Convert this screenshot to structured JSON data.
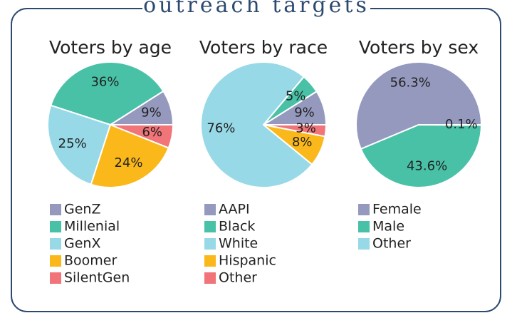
{
  "header": {
    "title": "outreach targets"
  },
  "chart_data": [
    {
      "type": "pie",
      "title": "Voters by age",
      "categories": [
        "GenZ",
        "Millenial",
        "GenX",
        "Boomer",
        "SilentGen"
      ],
      "values": [
        9,
        36,
        25,
        24,
        6
      ],
      "value_labels": [
        "9%",
        "36%",
        "25%",
        "24%",
        "6%"
      ],
      "colors": [
        "#9599be",
        "#48c1a6",
        "#97d9e6",
        "#fbb81a",
        "#f07478"
      ]
    },
    {
      "type": "pie",
      "title": "Voters by race",
      "categories": [
        "AAPI",
        "Black",
        "White",
        "Hispanic",
        "Other"
      ],
      "values": [
        9,
        5,
        76,
        8,
        3
      ],
      "value_labels": [
        "9%",
        "5%",
        "76%",
        "8%",
        "3%"
      ],
      "colors": [
        "#9599be",
        "#48c1a6",
        "#97d9e6",
        "#fbb81a",
        "#f07478"
      ]
    },
    {
      "type": "pie",
      "title": "Voters by sex",
      "categories": [
        "Female",
        "Male",
        "Other"
      ],
      "values": [
        56.3,
        43.6,
        0.1
      ],
      "value_labels": [
        "56.3%",
        "43.6%",
        "0.1%"
      ],
      "colors": [
        "#9599be",
        "#48c1a6",
        "#97d9e6"
      ]
    }
  ]
}
